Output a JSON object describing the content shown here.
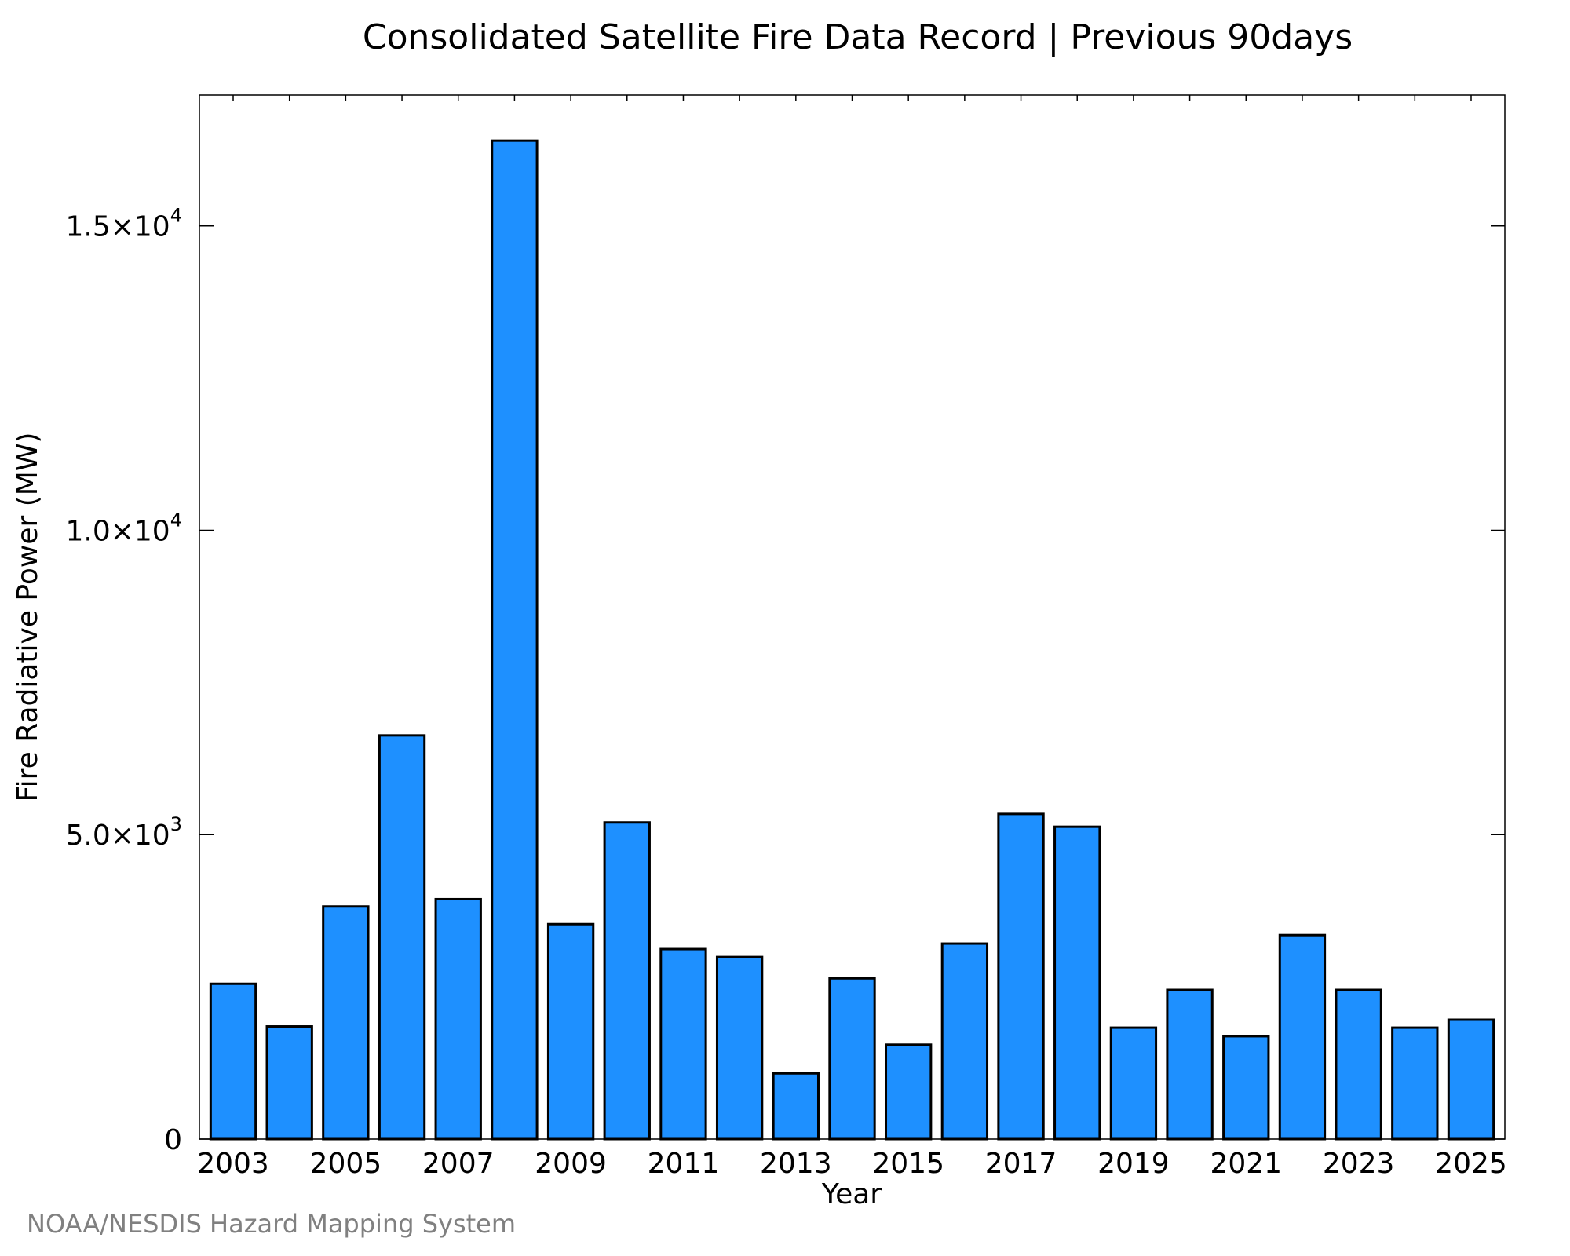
{
  "chart_data": {
    "type": "bar",
    "title": "Consolidated Satellite Fire Data Record | Previous 90days",
    "xlabel": "Year",
    "ylabel": "Fire Radiative Power (MW)",
    "categories": [
      "2003",
      "2004",
      "2005",
      "2006",
      "2007",
      "2008",
      "2009",
      "2010",
      "2011",
      "2012",
      "2013",
      "2014",
      "2015",
      "2016",
      "2017",
      "2018",
      "2019",
      "2020",
      "2021",
      "2022",
      "2023",
      "2024",
      "2025"
    ],
    "values": [
      2550,
      1850,
      3820,
      6630,
      3940,
      16400,
      3530,
      5200,
      3120,
      2990,
      1080,
      2640,
      1550,
      3210,
      5340,
      5130,
      1830,
      2450,
      1690,
      3350,
      2450,
      1830,
      1960
    ],
    "x_tick_labels": [
      "2003",
      "2005",
      "2007",
      "2009",
      "2011",
      "2013",
      "2015",
      "2017",
      "2019",
      "2021",
      "2023",
      "2025"
    ],
    "y_ticks": [
      {
        "value": 0,
        "mantissa": "0",
        "exponent": ""
      },
      {
        "value": 5000,
        "mantissa": "5.0×10",
        "exponent": "3"
      },
      {
        "value": 10000,
        "mantissa": "1.0×10",
        "exponent": "4"
      },
      {
        "value": 15000,
        "mantissa": "1.5×10",
        "exponent": "4"
      }
    ],
    "ylim": [
      0,
      17150
    ],
    "grid": false,
    "bar_color": "#1E90FF",
    "edge_color": "#000000"
  },
  "footer": "NOAA/NESDIS Hazard Mapping System"
}
